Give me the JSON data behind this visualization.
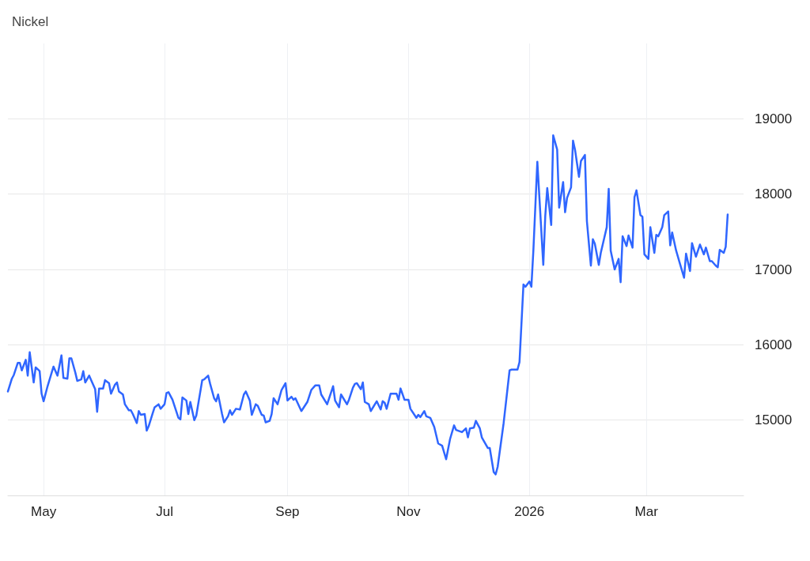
{
  "chart_data": {
    "type": "line",
    "title": "Nickel",
    "x": [
      "2025-04-13",
      "2025-04-15",
      "2025-04-16",
      "2025-04-18",
      "2025-04-19",
      "2025-04-20",
      "2025-04-22",
      "2025-04-23",
      "2025-04-24",
      "2025-04-26",
      "2025-04-27",
      "2025-04-29",
      "2025-04-30",
      "2025-05-01",
      "2025-05-03",
      "2025-05-06",
      "2025-05-08",
      "2025-05-10",
      "2025-05-11",
      "2025-05-13",
      "2025-05-14",
      "2025-05-15",
      "2025-05-17",
      "2025-05-18",
      "2025-05-20",
      "2025-05-21",
      "2025-05-22",
      "2025-05-24",
      "2025-05-25",
      "2025-05-27",
      "2025-05-28",
      "2025-05-29",
      "2025-05-31",
      "2025-06-01",
      "2025-06-03",
      "2025-06-04",
      "2025-06-06",
      "2025-06-07",
      "2025-06-08",
      "2025-06-10",
      "2025-06-11",
      "2025-06-13",
      "2025-06-14",
      "2025-06-15",
      "2025-06-17",
      "2025-06-18",
      "2025-06-19",
      "2025-06-21",
      "2025-06-22",
      "2025-06-23",
      "2025-06-25",
      "2025-06-26",
      "2025-06-28",
      "2025-06-29",
      "2025-07-01",
      "2025-07-02",
      "2025-07-03",
      "2025-07-05",
      "2025-07-08",
      "2025-07-09",
      "2025-07-10",
      "2025-07-12",
      "2025-07-13",
      "2025-07-14",
      "2025-07-16",
      "2025-07-17",
      "2025-07-20",
      "2025-07-21",
      "2025-07-23",
      "2025-07-24",
      "2025-07-26",
      "2025-07-27",
      "2025-07-28",
      "2025-07-30",
      "2025-07-31",
      "2025-08-02",
      "2025-08-03",
      "2025-08-04",
      "2025-08-06",
      "2025-08-08",
      "2025-08-10",
      "2025-08-11",
      "2025-08-13",
      "2025-08-14",
      "2025-08-16",
      "2025-08-17",
      "2025-08-19",
      "2025-08-20",
      "2025-08-21",
      "2025-08-23",
      "2025-08-24",
      "2025-08-25",
      "2025-08-27",
      "2025-08-29",
      "2025-08-31",
      "2025-09-01",
      "2025-09-03",
      "2025-09-04",
      "2025-09-05",
      "2025-09-08",
      "2025-09-11",
      "2025-09-13",
      "2025-09-15",
      "2025-09-17",
      "2025-09-18",
      "2025-09-21",
      "2025-09-24",
      "2025-09-25",
      "2025-09-27",
      "2025-09-28",
      "2025-10-01",
      "2025-10-02",
      "2025-10-04",
      "2025-10-05",
      "2025-10-06",
      "2025-10-08",
      "2025-10-09",
      "2025-10-10",
      "2025-10-12",
      "2025-10-13",
      "2025-10-16",
      "2025-10-18",
      "2025-10-19",
      "2025-10-20",
      "2025-10-21",
      "2025-10-23",
      "2025-10-26",
      "2025-10-27",
      "2025-10-28",
      "2025-10-30",
      "2025-11-01",
      "2025-11-02",
      "2025-11-05",
      "2025-11-06",
      "2025-11-07",
      "2025-11-09",
      "2025-11-10",
      "2025-11-12",
      "2025-11-14",
      "2025-11-16",
      "2025-11-18",
      "2025-11-20",
      "2025-11-22",
      "2025-11-24",
      "2025-11-25",
      "2025-11-28",
      "2025-11-30",
      "2025-12-01",
      "2025-12-02",
      "2025-12-04",
      "2025-12-05",
      "2025-12-07",
      "2025-12-08",
      "2025-12-11",
      "2025-12-12",
      "2025-12-14",
      "2025-12-15",
      "2025-12-16",
      "2025-12-19",
      "2025-12-22",
      "2025-12-23",
      "2025-12-26",
      "2025-12-27",
      "2025-12-29",
      "2025-12-30",
      "2026-01-01",
      "2026-01-02",
      "2026-01-03",
      "2026-01-05",
      "2026-01-08",
      "2026-01-09",
      "2026-01-10",
      "2026-01-12",
      "2026-01-13",
      "2026-01-15",
      "2026-01-16",
      "2026-01-18",
      "2026-01-19",
      "2026-01-20",
      "2026-01-22",
      "2026-01-23",
      "2026-01-24",
      "2026-01-26",
      "2026-01-27",
      "2026-01-29",
      "2026-01-30",
      "2026-02-01",
      "2026-02-02",
      "2026-02-03",
      "2026-02-05",
      "2026-02-06",
      "2026-02-09",
      "2026-02-10",
      "2026-02-11",
      "2026-02-13",
      "2026-02-15",
      "2026-02-16",
      "2026-02-17",
      "2026-02-19",
      "2026-02-20",
      "2026-02-22",
      "2026-02-23",
      "2026-02-24",
      "2026-02-26",
      "2026-02-27",
      "2026-02-28",
      "2026-03-02",
      "2026-03-03",
      "2026-03-05",
      "2026-03-06",
      "2026-03-07",
      "2026-03-09",
      "2026-03-10",
      "2026-03-12",
      "2026-03-13",
      "2026-03-14",
      "2026-03-16",
      "2026-03-18",
      "2026-03-20",
      "2026-03-21",
      "2026-03-23",
      "2026-03-24",
      "2026-03-26",
      "2026-03-28",
      "2026-03-30",
      "2026-03-31",
      "2026-04-02",
      "2026-04-03",
      "2026-04-05",
      "2026-04-06",
      "2026-04-07",
      "2026-04-09",
      "2026-04-10",
      "2026-04-11"
    ],
    "values": [
      15380,
      15550,
      15600,
      15760,
      15760,
      15660,
      15800,
      15590,
      15900,
      15500,
      15700,
      15650,
      15350,
      15250,
      15450,
      15710,
      15590,
      15860,
      15560,
      15550,
      15820,
      15820,
      15630,
      15520,
      15540,
      15650,
      15500,
      15590,
      15530,
      15410,
      15110,
      15420,
      15420,
      15530,
      15490,
      15350,
      15470,
      15500,
      15380,
      15340,
      15210,
      15130,
      15130,
      15080,
      14960,
      15120,
      15070,
      15080,
      14860,
      14920,
      15090,
      15170,
      15210,
      15150,
      15210,
      15360,
      15370,
      15270,
      15030,
      15010,
      15300,
      15260,
      15080,
      15240,
      15000,
      15060,
      15530,
      15540,
      15590,
      15480,
      15290,
      15250,
      15340,
      15080,
      14970,
      15050,
      15130,
      15070,
      15150,
      15140,
      15340,
      15380,
      15260,
      15070,
      15210,
      15190,
      15070,
      15060,
      14970,
      14990,
      15080,
      15290,
      15210,
      15400,
      15490,
      15260,
      15310,
      15270,
      15290,
      15120,
      15240,
      15400,
      15460,
      15460,
      15340,
      15210,
      15450,
      15260,
      15170,
      15340,
      15210,
      15270,
      15430,
      15480,
      15490,
      15410,
      15500,
      15240,
      15210,
      15120,
      15250,
      15140,
      15250,
      15230,
      15150,
      15350,
      15350,
      15270,
      15420,
      15270,
      15270,
      15150,
      15030,
      15070,
      15040,
      15120,
      15050,
      15030,
      14910,
      14690,
      14660,
      14480,
      14750,
      14930,
      14870,
      14840,
      14890,
      14770,
      14890,
      14900,
      14990,
      14890,
      14770,
      14630,
      14630,
      14310,
      14280,
      14380,
      14960,
      15660,
      15670,
      15670,
      15770,
      16800,
      16770,
      16840,
      16770,
      17250,
      18430,
      17060,
      17710,
      18080,
      17590,
      18780,
      18590,
      17820,
      18160,
      17760,
      17950,
      18090,
      18710,
      18590,
      18230,
      18440,
      18520,
      17640,
      17050,
      17400,
      17340,
      17060,
      17220,
      17560,
      18070,
      17250,
      17000,
      17140,
      16830,
      17440,
      17310,
      17450,
      17290,
      17960,
      18050,
      17720,
      17700,
      17200,
      17140,
      17560,
      17220,
      17460,
      17440,
      17560,
      17720,
      17770,
      17320,
      17490,
      17250,
      17070,
      16890,
      17210,
      16980,
      17350,
      17170,
      17330,
      17200,
      17290,
      17110,
      17110,
      17050,
      17030,
      17260,
      17220,
      17300,
      17730
    ],
    "color": "#2f66ff",
    "xlim": [
      "2025-04-13",
      "2026-04-19"
    ],
    "xticks": [
      {
        "value": "2025-05-01",
        "label": "May"
      },
      {
        "value": "2025-07-01",
        "label": "Jul"
      },
      {
        "value": "2025-09-01",
        "label": "Sep"
      },
      {
        "value": "2025-11-01",
        "label": "Nov"
      },
      {
        "value": "2026-01-01",
        "label": "2026"
      },
      {
        "value": "2026-03-01",
        "label": "Mar"
      }
    ],
    "ylim": [
      14000,
      20000
    ],
    "yticks": [
      15000,
      16000,
      17000,
      18000,
      19000
    ],
    "grid": true,
    "marker": "none",
    "line_style": "solid"
  }
}
